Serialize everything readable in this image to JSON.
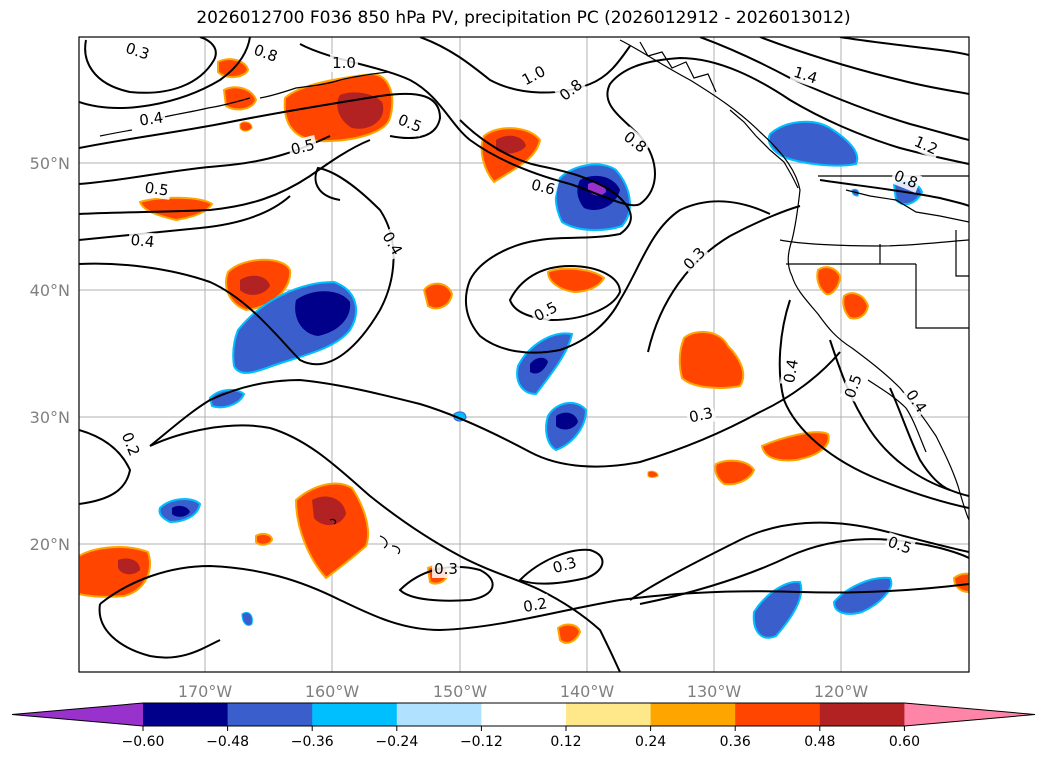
{
  "title": "2026012700 F036 850 hPa PV, precipitation PC (2026012912 - 2026013012)",
  "lat_labels": [
    "50°N",
    "40°N",
    "30°N",
    "20°N"
  ],
  "lon_labels": [
    "170°W",
    "160°W",
    "150°W",
    "140°W",
    "130°W",
    "120°W"
  ],
  "colorbar": {
    "ticks": [
      "−0.60",
      "−0.48",
      "−0.36",
      "−0.24",
      "−0.12",
      "0.12",
      "0.24",
      "0.36",
      "0.48",
      "0.60"
    ],
    "colors": [
      "#9932cc",
      "#00008b",
      "#3a5fcd",
      "#00bfff",
      "#b0e2ff",
      "#ffffff",
      "#ffe88a",
      "#ffa500",
      "#ff4500",
      "#b22222",
      "#ff85a8"
    ]
  },
  "contour_labels": [
    "0.3",
    "0.8",
    "1.0",
    "0.4",
    "0.5",
    "0.5",
    "1.0",
    "0.8",
    "1.4",
    "0.8",
    "1.2",
    "0.8",
    "0.5",
    "0.6",
    "0.4",
    "0.4",
    "0.5",
    "0.3",
    "0.4",
    "0.5",
    "0.4",
    "0.3",
    "0.2",
    "0.3",
    "0.3",
    "0.2",
    "0.5"
  ]
}
